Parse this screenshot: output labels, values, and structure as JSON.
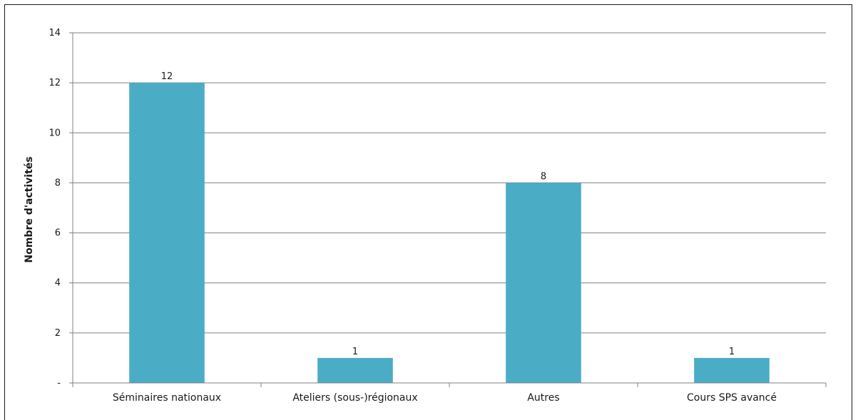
{
  "chart_data": {
    "type": "bar",
    "title": "",
    "xlabel": "",
    "ylabel": "Nombre d'activités",
    "categories": [
      "Séminaires nationaux",
      "Ateliers (sous-)régionaux",
      "Autres",
      "Cours SPS avancé"
    ],
    "values": [
      12,
      1,
      8,
      1
    ],
    "data_labels": [
      "12",
      "1",
      "8",
      "1"
    ],
    "ylim": [
      0,
      14
    ],
    "yticks": [
      0,
      2,
      4,
      6,
      8,
      10,
      12,
      14
    ],
    "ytick_labels": [
      "-",
      "2",
      "4",
      "6",
      "8",
      "10",
      "12",
      "14"
    ],
    "grid": true,
    "legend": "none",
    "colors": {
      "bar": "#4bacc6",
      "grid": "#808080",
      "axis": "#808080"
    }
  }
}
